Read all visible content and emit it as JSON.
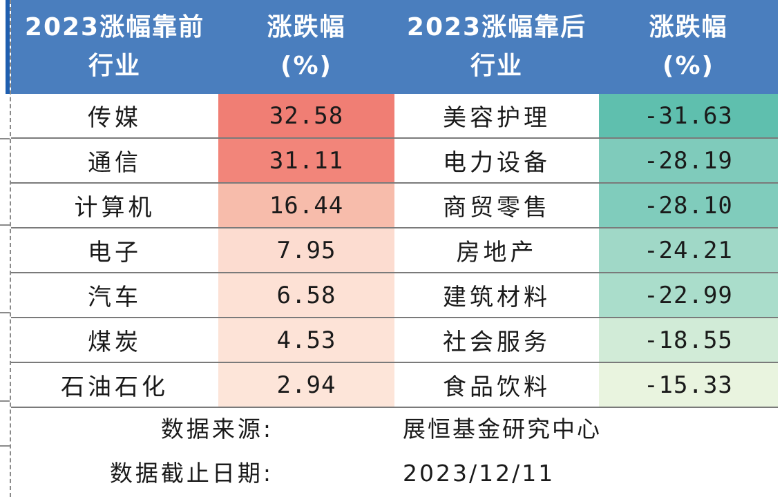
{
  "header": {
    "col1_line1": "2023涨幅靠前",
    "col1_line2": "行业",
    "col2_line1": "涨跌幅",
    "col2_line2": "(%)",
    "col3_line1": "2023涨幅靠后",
    "col3_line2": "行业",
    "col4_line1": "涨跌幅",
    "col4_line2": "(%)"
  },
  "rows": [
    {
      "top_industry": "传媒",
      "top_change": "32.58",
      "top_color": "#f07e74",
      "bottom_industry": "美容护理",
      "bottom_change": "-31.63",
      "bottom_color": "#5fbfae"
    },
    {
      "top_industry": "通信",
      "top_change": "31.11",
      "top_color": "#f2857a",
      "bottom_industry": "电力设备",
      "bottom_change": "-28.19",
      "bottom_color": "#7fcbbb"
    },
    {
      "top_industry": "计算机",
      "top_change": "16.44",
      "top_color": "#f7bcab",
      "bottom_industry": "商贸零售",
      "bottom_change": "-28.10",
      "bottom_color": "#80ccbc"
    },
    {
      "top_industry": "电子",
      "top_change": "7.95",
      "top_color": "#fcdcd0",
      "bottom_industry": "房地产",
      "bottom_change": "-24.21",
      "bottom_color": "#a0d8c7"
    },
    {
      "top_industry": "汽车",
      "top_change": "6.58",
      "top_color": "#fde1d5",
      "bottom_industry": "建筑材料",
      "bottom_change": "-22.99",
      "bottom_color": "#aaddcb"
    },
    {
      "top_industry": "煤炭",
      "top_change": "4.53",
      "top_color": "#fde3d7",
      "bottom_industry": "社会服务",
      "bottom_change": "-18.55",
      "bottom_color": "#d1ebd7"
    },
    {
      "top_industry": "石油石化",
      "top_change": "2.94",
      "top_color": "#fde5d9",
      "bottom_industry": "食品饮料",
      "bottom_change": "-15.33",
      "bottom_color": "#e9f4df"
    }
  ],
  "footer": {
    "source_label": "数据来源:",
    "source_value": "展恒基金研究中心",
    "date_label": "数据截止日期:",
    "date_value": "2023/12/11"
  }
}
